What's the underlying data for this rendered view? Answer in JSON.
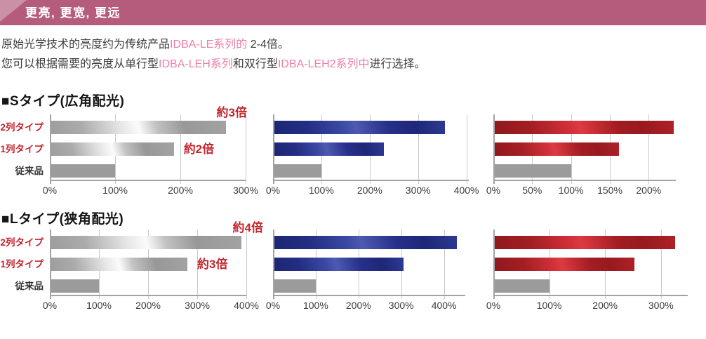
{
  "colors": {
    "header-bg": "#b55c7c",
    "header-corner": "#cb90a6",
    "accent": "#ee7fa9",
    "text-dark": "#3d3d3d",
    "red-label": "#c3262e",
    "grid": "#c9c9c9",
    "axis": "#a3a3a3",
    "bar-gray": "#9b9b9b",
    "bar-blue-dark": "#232e83",
    "bar-red-dark": "#a51f24"
  },
  "header": {
    "title": "更亮, 更宽, 更远"
  },
  "paragraph": {
    "line1": [
      {
        "text": "原始光学技术的亮度约为传统产品",
        "accent": false
      },
      {
        "text": "IDBA-LE系列的",
        "accent": true
      },
      {
        "text": " 2-4倍。",
        "accent": false
      }
    ],
    "line2": [
      {
        "text": "您可以根据需要的亮度从单行型",
        "accent": false
      },
      {
        "text": "IDBA-LEH系列",
        "accent": true
      },
      {
        "text": "和双行型",
        "accent": false
      },
      {
        "text": "IDBA-LEH2系列中",
        "accent": true
      },
      {
        "text": "进行选择。",
        "accent": false
      }
    ]
  },
  "sections": [
    {
      "title": "■Sタイプ(広角配光)"
    },
    {
      "title": "■Lタイプ(狭角配光)"
    }
  ],
  "row_labels": [
    "2列タイプ",
    "1列タイプ",
    "従来品"
  ],
  "chart_data": [
    {
      "type": "bar",
      "orientation": "horizontal",
      "section": "Sタイプ(広角配光)",
      "series_color": "silver",
      "categories": [
        "2列タイプ",
        "1列タイプ",
        "従来品"
      ],
      "values": [
        270,
        190,
        100
      ],
      "ticks": [
        0,
        100,
        200,
        300
      ],
      "tick_suffix": "%",
      "xlim": [
        0,
        300
      ],
      "grid": true,
      "show_row_labels": true,
      "annotations": [
        {
          "text": "約3倍",
          "placement": "top"
        },
        {
          "text": "約2倍",
          "placement": "bar2"
        }
      ]
    },
    {
      "type": "bar",
      "orientation": "horizontal",
      "section": "Sタイプ(広角配光)",
      "series_color": "blue",
      "categories": [
        "2列タイプ",
        "1列タイプ",
        "従来品"
      ],
      "values": [
        355,
        230,
        100
      ],
      "ticks": [
        0,
        100,
        200,
        300,
        400
      ],
      "tick_suffix": "%",
      "xlim": [
        0,
        405
      ],
      "grid": true,
      "show_row_labels": false,
      "annotations": []
    },
    {
      "type": "bar",
      "orientation": "horizontal",
      "section": "Sタイプ(広角配光)",
      "series_color": "red",
      "categories": [
        "2列タイプ",
        "1列タイプ",
        "従来品"
      ],
      "values": [
        232,
        162,
        100
      ],
      "ticks": [
        0,
        50,
        100,
        150,
        200
      ],
      "tick_suffix": "%",
      "xlim": [
        0,
        235
      ],
      "grid": true,
      "show_row_labels": false,
      "annotations": []
    },
    {
      "type": "bar",
      "orientation": "horizontal",
      "section": "Lタイプ(狭角配光)",
      "series_color": "silver",
      "categories": [
        "2列タイプ",
        "1列タイプ",
        "従来品"
      ],
      "values": [
        390,
        280,
        100
      ],
      "ticks": [
        0,
        100,
        200,
        300,
        400
      ],
      "tick_suffix": "%",
      "xlim": [
        0,
        400
      ],
      "grid": true,
      "show_row_labels": true,
      "annotations": [
        {
          "text": "約4倍",
          "placement": "top"
        },
        {
          "text": "約3倍",
          "placement": "bar2"
        }
      ]
    },
    {
      "type": "bar",
      "orientation": "horizontal",
      "section": "Lタイプ(狭角配光)",
      "series_color": "blue",
      "categories": [
        "2列タイプ",
        "1列タイプ",
        "従来品"
      ],
      "values": [
        430,
        305,
        100
      ],
      "ticks": [
        0,
        100,
        200,
        300,
        400
      ],
      "tick_suffix": "%",
      "xlim": [
        0,
        450
      ],
      "grid": true,
      "show_row_labels": false,
      "annotations": []
    },
    {
      "type": "bar",
      "orientation": "horizontal",
      "section": "Lタイプ(狭角配光)",
      "series_color": "red",
      "categories": [
        "2列タイプ",
        "1列タイプ",
        "従来品"
      ],
      "values": [
        325,
        253,
        100
      ],
      "ticks": [
        0,
        100,
        200,
        300
      ],
      "tick_suffix": "%",
      "xlim": [
        0,
        348
      ],
      "grid": true,
      "show_row_labels": false,
      "annotations": []
    }
  ]
}
